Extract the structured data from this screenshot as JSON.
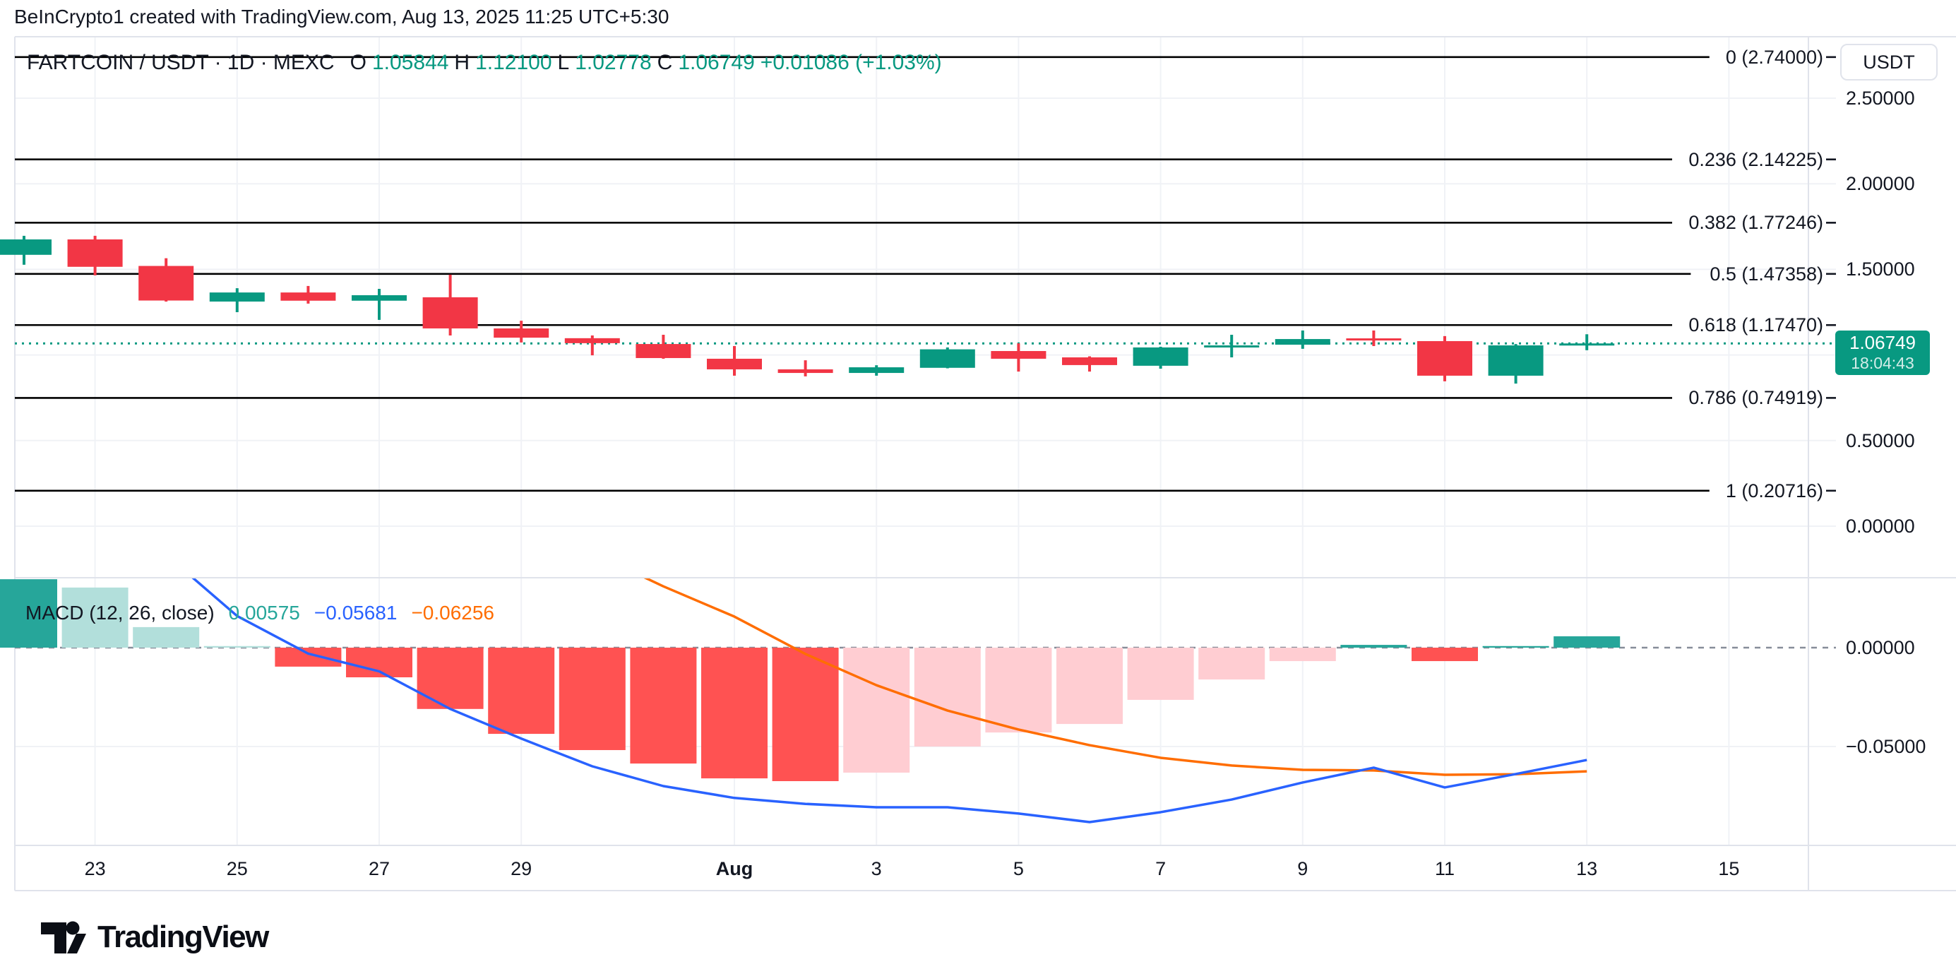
{
  "header": {
    "attribution": "BeInCrypto1 created with TradingView.com, Aug 13, 2025 11:25 UTC+5:30"
  },
  "title": {
    "symbol": "FARTCOIN / USDT · 1D · MEXC",
    "o_label": "O",
    "o_value": "1.05844",
    "h_label": "H",
    "h_value": "1.12100",
    "l_label": "L",
    "l_value": "1.02778",
    "c_label": "C",
    "c_value": "1.06749",
    "change": "+0.01086 (+1.03%)"
  },
  "price_axis": {
    "currency_button": "USDT",
    "labels": [
      {
        "text": "2.50000",
        "price": 2.5
      },
      {
        "text": "2.00000",
        "price": 2.0
      },
      {
        "text": "1.50000",
        "price": 1.5
      },
      {
        "text": "0.50000",
        "price": 0.5
      },
      {
        "text": "0.00000",
        "price": 0.0
      }
    ],
    "badge": {
      "price": "1.06749",
      "time": "18:04:43"
    }
  },
  "macd_axis": {
    "labels": [
      {
        "text": "0.00000",
        "value": 0.0
      },
      {
        "text": "−0.05000",
        "value": -0.05
      }
    ]
  },
  "macd_legend": {
    "name": "MACD (12, 26, close)",
    "histogram": "0.00575",
    "macd": "−0.05681",
    "signal": "−0.06256"
  },
  "watermark": {
    "brand": "TradingView"
  },
  "colors": {
    "up": "#089981",
    "down": "#F23645",
    "hist_grow_above": "#26A69A",
    "hist_fall_above": "#B2DFDB",
    "hist_fall_below": "#FF5252",
    "hist_grow_below": "#FFCDD2",
    "macd_line": "#2962FF",
    "signal_line": "#FF6D00",
    "fib_line": "#000000",
    "grid": "#F0F2F6",
    "border": "#E0E3EB",
    "text": "#131722",
    "badge_bg": "#089981",
    "zero_dash": "#878D99"
  },
  "chart_data": {
    "type": "candlestick",
    "title": "FARTCOIN / USDT · 1D · MEXC",
    "legend_position": "top-left",
    "grid": "on",
    "price_ylim_visible": [
      0.0,
      2.8
    ],
    "price_gridlines": [
      2.5,
      2.0,
      1.5,
      1.0,
      0.5,
      0.0
    ],
    "macd_gridlines": [
      -0.05
    ],
    "dates": [
      "Jul 22",
      "Jul 23",
      "Jul 24",
      "Jul 25",
      "Jul 26",
      "Jul 27",
      "Jul 28",
      "Jul 29",
      "Jul 30",
      "Jul 31",
      "Aug 1",
      "Aug 2",
      "Aug 3",
      "Aug 4",
      "Aug 5",
      "Aug 6",
      "Aug 7",
      "Aug 8",
      "Aug 9",
      "Aug 10",
      "Aug 11",
      "Aug 12",
      "Aug 13"
    ],
    "candles": [
      [
        1.585,
        1.696,
        1.527,
        1.675
      ],
      [
        1.675,
        1.696,
        1.465,
        1.515
      ],
      [
        1.52,
        1.565,
        1.312,
        1.318
      ],
      [
        1.312,
        1.39,
        1.25,
        1.365
      ],
      [
        1.365,
        1.403,
        1.3,
        1.317
      ],
      [
        1.317,
        1.386,
        1.205,
        1.349
      ],
      [
        1.337,
        1.469,
        1.114,
        1.155
      ],
      [
        1.155,
        1.2,
        1.073,
        1.101
      ],
      [
        1.098,
        1.114,
        0.998,
        1.069
      ],
      [
        1.064,
        1.118,
        0.978,
        0.982
      ],
      [
        0.978,
        1.052,
        0.879,
        0.916
      ],
      [
        0.916,
        0.969,
        0.875,
        0.895
      ],
      [
        0.895,
        0.94,
        0.879,
        0.928
      ],
      [
        0.925,
        1.044,
        0.922,
        1.033
      ],
      [
        1.023,
        1.068,
        0.903,
        0.978
      ],
      [
        0.986,
        0.992,
        0.903,
        0.941
      ],
      [
        0.937,
        1.048,
        0.92,
        1.044
      ],
      [
        1.052,
        1.118,
        0.986,
        1.056
      ],
      [
        1.06,
        1.143,
        1.036,
        1.093
      ],
      [
        1.097,
        1.143,
        1.052,
        1.085
      ],
      [
        1.081,
        1.11,
        0.846,
        0.879
      ],
      [
        0.879,
        1.064,
        0.833,
        1.056
      ],
      [
        1.05844,
        1.121,
        1.02778,
        1.06749
      ]
    ],
    "last_price": 1.06749,
    "last_time": "18:04:43",
    "fib_retracement": [
      {
        "label": "0 (2.74000)",
        "price": 2.74
      },
      {
        "label": "0.236 (2.14225)",
        "price": 2.14225
      },
      {
        "label": "0.382 (1.77246)",
        "price": 1.77246
      },
      {
        "label": "0.5 (1.47358)",
        "price": 1.47358
      },
      {
        "label": "0.618 (1.17470)",
        "price": 1.1747
      },
      {
        "label": "0.786 (0.74919)",
        "price": 0.74919
      },
      {
        "label": "1 (0.20716)",
        "price": 0.20716
      }
    ],
    "time_ticks": [
      {
        "text": "23",
        "index": 1
      },
      {
        "text": "25",
        "index": 3
      },
      {
        "text": "27",
        "index": 5
      },
      {
        "text": "29",
        "index": 7
      },
      {
        "text": "Aug",
        "index": 10,
        "bold": true
      },
      {
        "text": "3",
        "index": 12
      },
      {
        "text": "5",
        "index": 14
      },
      {
        "text": "7",
        "index": 16
      },
      {
        "text": "9",
        "index": 18
      },
      {
        "text": "11",
        "index": 20
      },
      {
        "text": "13",
        "index": 22
      },
      {
        "text": "15",
        "index": 24
      }
    ],
    "macd": {
      "params": "12, 26, close",
      "current": {
        "histogram": 0.00575,
        "macd": -0.05681,
        "signal": -0.06256
      },
      "histogram": [
        0.0346,
        0.0304,
        0.0104,
        0.0008,
        -0.0096,
        -0.015,
        -0.031,
        -0.0436,
        -0.0518,
        -0.0586,
        -0.0661,
        -0.0675,
        -0.0632,
        -0.05,
        -0.0429,
        -0.0386,
        -0.0264,
        -0.0161,
        -0.0068,
        0.0014,
        -0.0068,
        0.0008,
        0.00575
      ],
      "hist_state": [
        "ga",
        "fa",
        "fa",
        "fa",
        "fb",
        "fb",
        "fb",
        "fb",
        "fb",
        "fb",
        "fb",
        "fb",
        "gb",
        "gb",
        "gb",
        "gb",
        "gb",
        "gb",
        "gb",
        "ga",
        "fb",
        "ga",
        "ga"
      ],
      "macd_line": [
        0.075,
        0.062,
        0.047,
        0.016,
        -0.003,
        -0.012,
        -0.031,
        -0.046,
        -0.06,
        -0.07,
        -0.076,
        -0.079,
        -0.0807,
        -0.0807,
        -0.0839,
        -0.0882,
        -0.0832,
        -0.0768,
        -0.0682,
        -0.0607,
        -0.0707,
        -0.0639,
        -0.05681
      ],
      "signal_line": [
        0.09,
        0.085,
        0.078,
        0.07,
        0.063,
        0.057,
        0.052,
        0.05,
        0.048,
        0.031,
        0.0157,
        -0.0032,
        -0.019,
        -0.0318,
        -0.0414,
        -0.0493,
        -0.0557,
        -0.0596,
        -0.0618,
        -0.0621,
        -0.0643,
        -0.064,
        -0.06256
      ]
    }
  }
}
